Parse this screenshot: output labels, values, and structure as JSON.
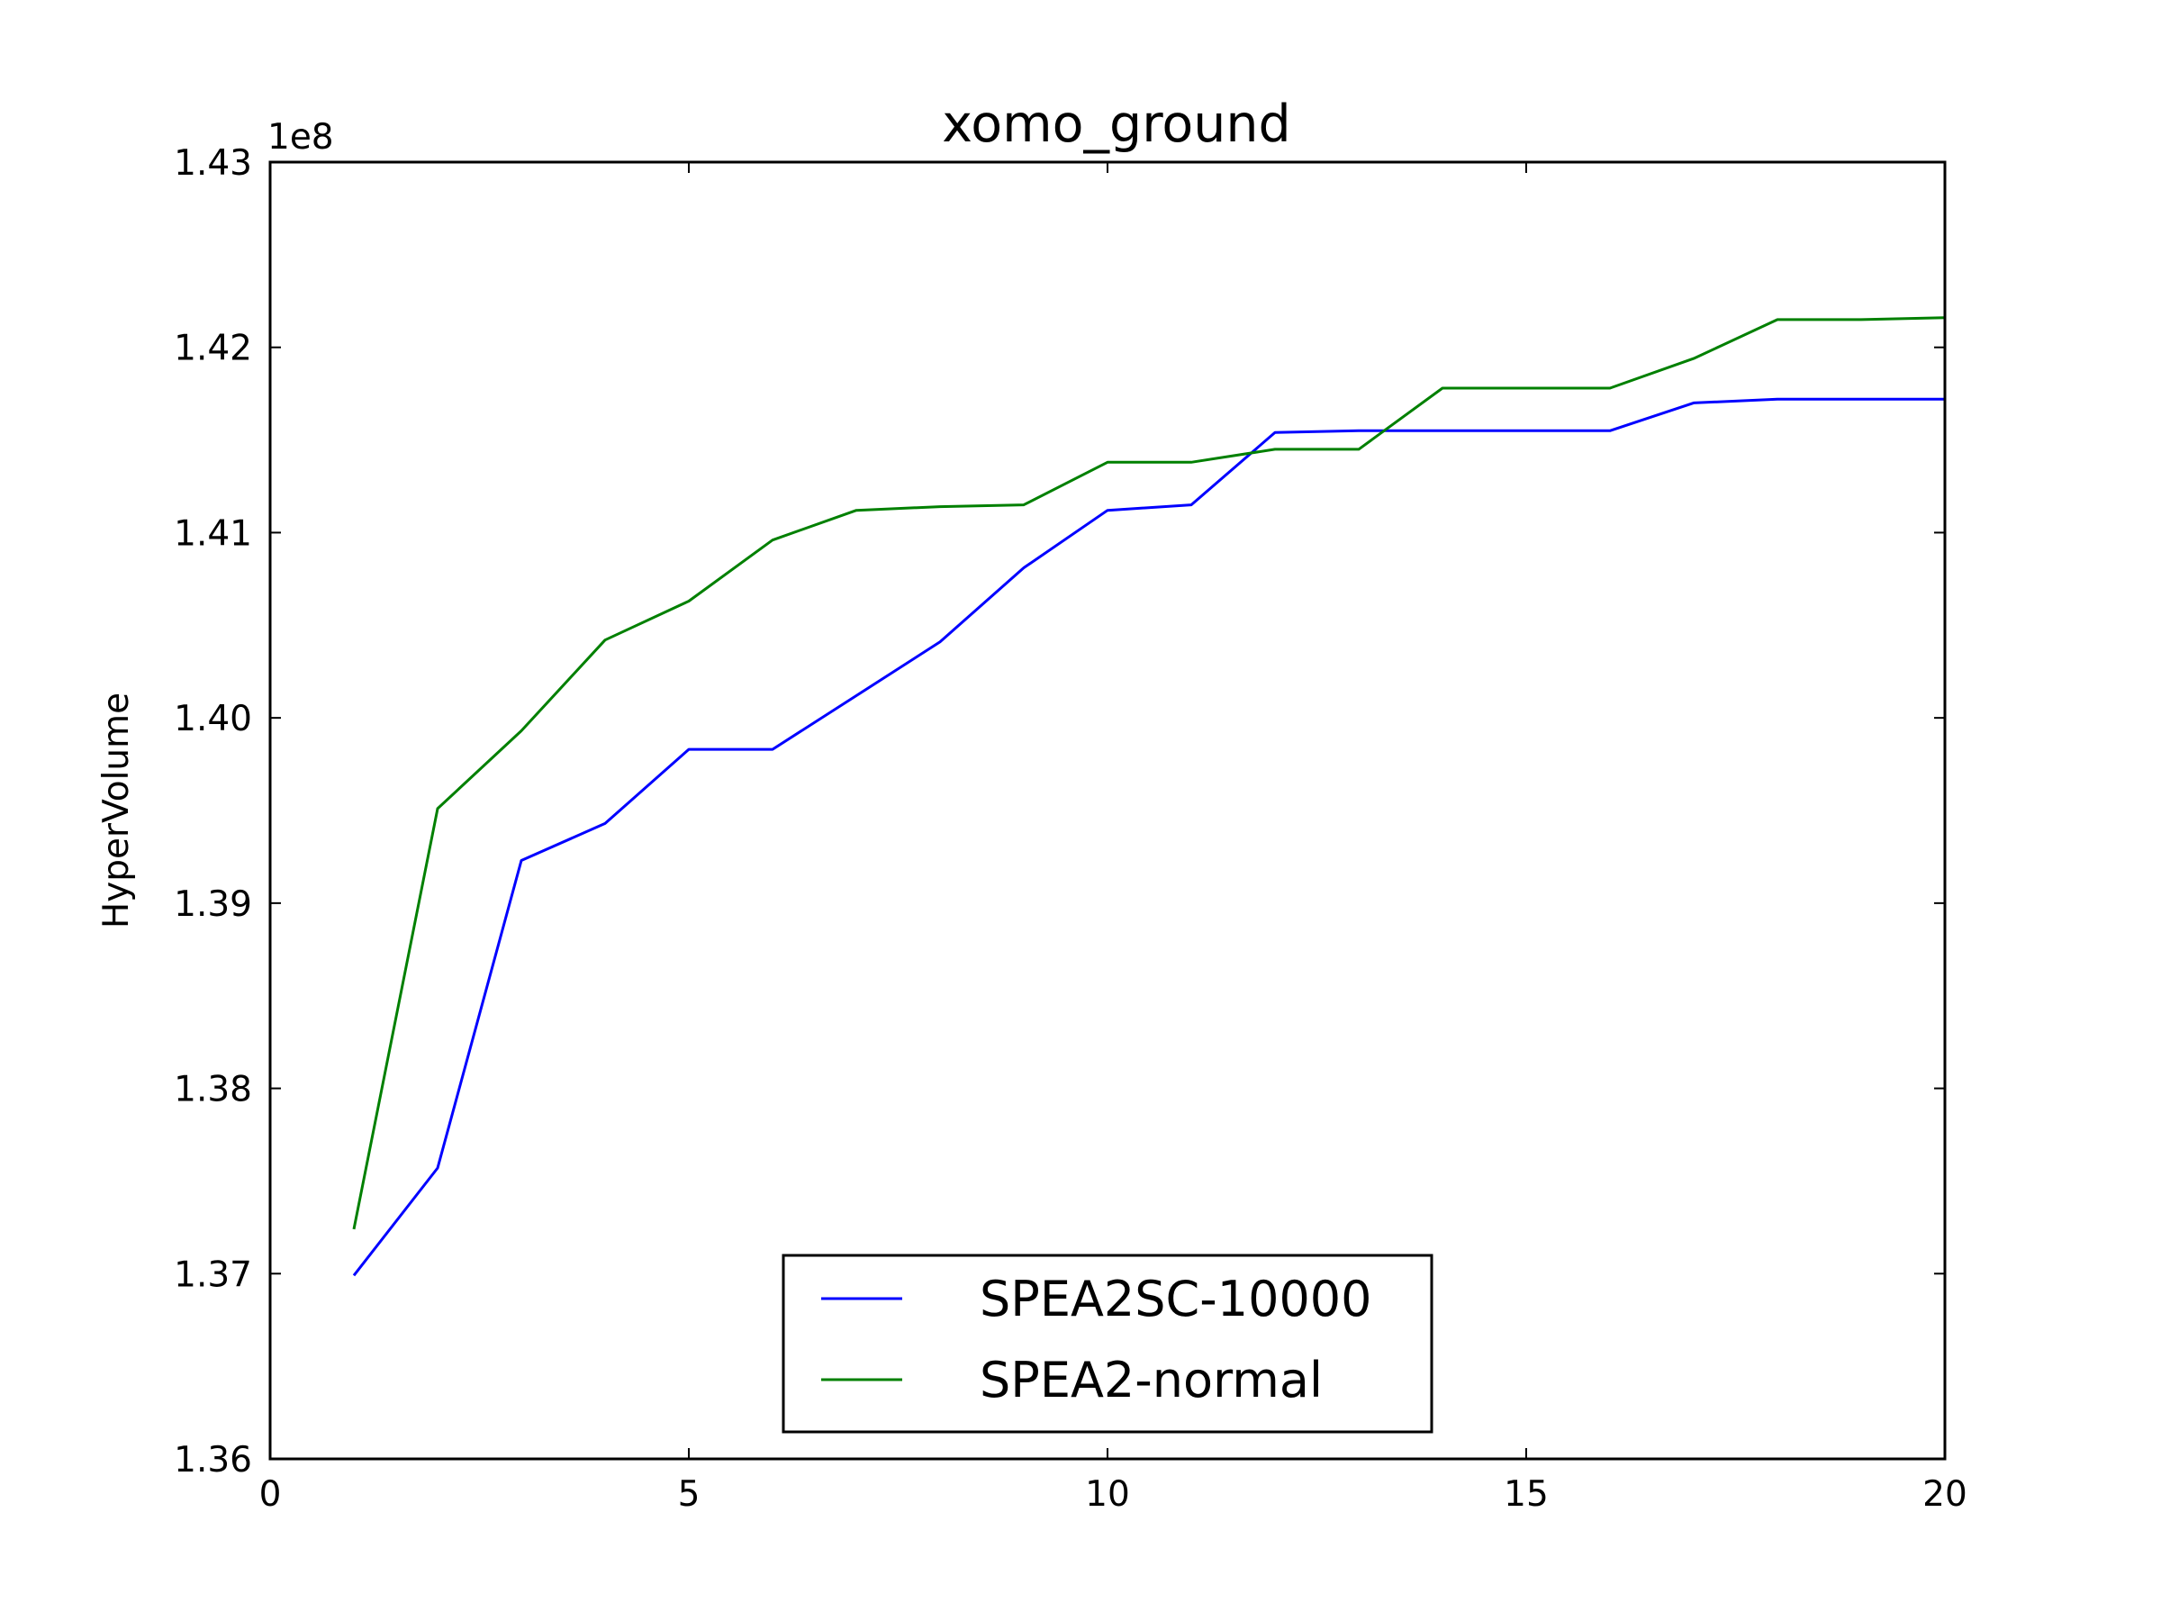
{
  "chart_data": {
    "type": "line",
    "title": "xomo_ground",
    "xlabel": "",
    "ylabel": "HyperVolume",
    "y_offset_label": "1e8",
    "xlim": [
      0,
      20
    ],
    "ylim": [
      1.36,
      1.43
    ],
    "xticks": [
      "0",
      "5",
      "10",
      "15",
      "20"
    ],
    "yticks": [
      "1.36",
      "1.37",
      "1.38",
      "1.39",
      "1.40",
      "1.41",
      "1.42",
      "1.43"
    ],
    "grid": false,
    "legend_position": "lower center",
    "x": [
      1,
      2,
      3,
      4,
      5,
      6,
      7,
      8,
      9,
      10,
      11,
      12,
      13,
      14,
      15,
      16,
      17,
      18,
      19,
      20
    ],
    "series": [
      {
        "name": "SPEA2SC-10000",
        "color": "#0000ff",
        "values": [
          1.3699,
          1.3757,
          1.3923,
          1.3943,
          1.3983,
          1.3983,
          1.4012,
          1.4041,
          1.4081,
          1.4112,
          1.4115,
          1.4154,
          1.4155,
          1.4155,
          1.4155,
          1.4155,
          1.417,
          1.4172,
          1.4172,
          1.4172
        ]
      },
      {
        "name": "SPEA2-normal",
        "color": "#008000",
        "values": [
          1.3724,
          1.3951,
          1.3993,
          1.4042,
          1.4063,
          1.4096,
          1.4112,
          1.4114,
          1.4115,
          1.4138,
          1.4138,
          1.4145,
          1.4145,
          1.4178,
          1.4178,
          1.4178,
          1.4194,
          1.4215,
          1.4215,
          1.4216
        ]
      }
    ]
  }
}
